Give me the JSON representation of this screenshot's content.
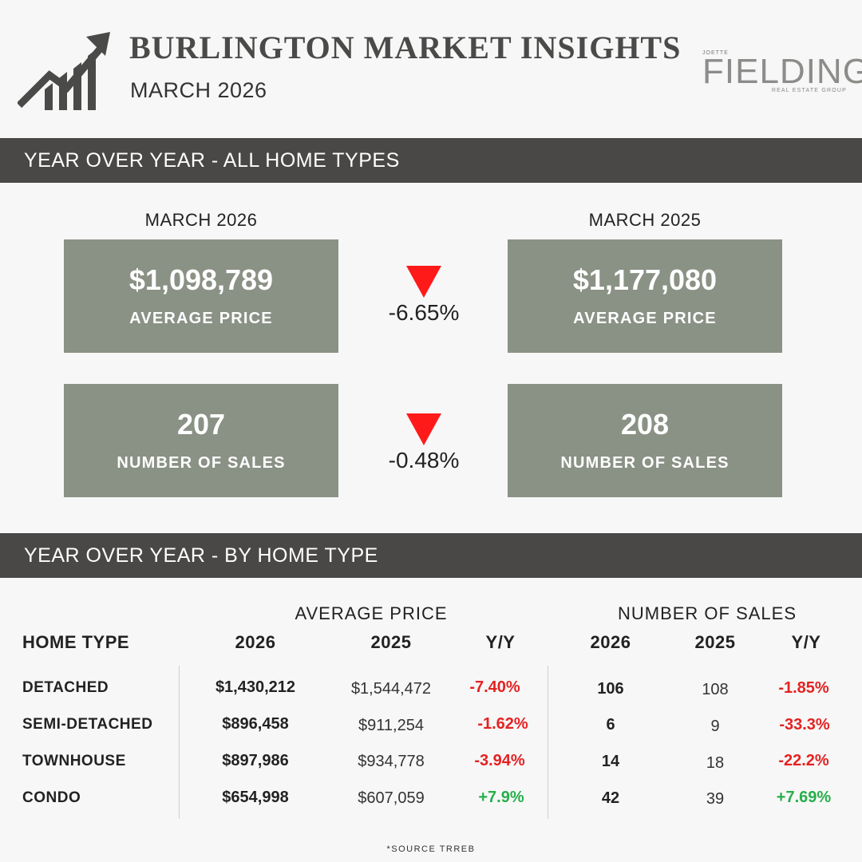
{
  "header": {
    "title": "BURLINGTON MARKET INSIGHTS",
    "subtitle": "MARCH 2026",
    "brand": {
      "small": "JOETTE",
      "name": "FIELDING",
      "tagline": "REAL ESTATE GROUP"
    },
    "icon": "trending-up-bar-chart-icon"
  },
  "section_all": {
    "title": "YEAR OVER YEAR - ALL HOME TYPES",
    "current_label": "MARCH 2026",
    "previous_label": "MARCH 2025",
    "price": {
      "current": "$1,098,789",
      "previous": "$1,177,080",
      "label": "AVERAGE PRICE",
      "change": "-6.65%"
    },
    "sales": {
      "current": "207",
      "previous": "208",
      "label": "NUMBER OF SALES",
      "change": "-0.48%"
    },
    "down_color": "#ff1a1a",
    "card_color": "#8a9185"
  },
  "section_type": {
    "title": "YEAR OVER YEAR - BY HOME TYPE",
    "group_price": "AVERAGE PRICE",
    "group_sales": "NUMBER OF SALES",
    "col_type": "HOME TYPE",
    "col_2026": "2026",
    "col_2025": "2025",
    "col_yy": "Y/Y",
    "rows": [
      {
        "type": "DETACHED",
        "price_2026": "$1,430,212",
        "price_2025": "$1,544,472",
        "price_yy": "-7.40%",
        "sales_2026": "106",
        "sales_2025": "108",
        "sales_yy": "-1.85%"
      },
      {
        "type": "SEMI-DETACHED",
        "price_2026": "$896,458",
        "price_2025": "$911,254",
        "price_yy": "-1.62%",
        "sales_2026": "6",
        "sales_2025": "9",
        "sales_yy": "-33.3%"
      },
      {
        "type": "TOWNHOUSE",
        "price_2026": "$897,986",
        "price_2025": "$934,778",
        "price_yy": "-3.94%",
        "sales_2026": "14",
        "sales_2025": "18",
        "sales_yy": "-22.2%"
      },
      {
        "type": "CONDO",
        "price_2026": "$654,998",
        "price_2025": "$607,059",
        "price_yy": "+7.9%",
        "sales_2026": "42",
        "sales_2025": "39",
        "sales_yy": "+7.69%"
      }
    ],
    "negative_color": "#e52222",
    "positive_color": "#27ae4a"
  },
  "footer": {
    "source": "*SOURCE TRREB"
  }
}
